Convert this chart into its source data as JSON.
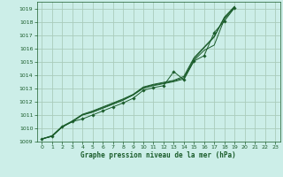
{
  "title": "Graphe pression niveau de la mer (hPa)",
  "background_color": "#cceee8",
  "grid_color": "#aaccbb",
  "line_color": "#1a5c2a",
  "xlim": [
    -0.5,
    23.5
  ],
  "ylim": [
    1009.0,
    1019.5
  ],
  "xticks": [
    0,
    1,
    2,
    3,
    4,
    5,
    6,
    7,
    8,
    9,
    10,
    11,
    12,
    13,
    14,
    15,
    16,
    17,
    18,
    19,
    20,
    21,
    22,
    23
  ],
  "yticks": [
    1009,
    1010,
    1011,
    1012,
    1013,
    1014,
    1015,
    1016,
    1017,
    1018,
    1019
  ],
  "line_x": [
    0,
    1,
    2,
    3,
    4,
    5,
    6,
    7,
    8,
    9,
    10,
    11,
    12,
    13,
    14,
    15,
    16,
    17,
    18,
    19,
    20,
    21,
    22,
    23
  ],
  "line1_y": [
    1009.2,
    1009.4,
    1010.1,
    1010.5,
    1010.7,
    1011.0,
    1011.3,
    1011.6,
    1011.9,
    1012.25,
    1012.85,
    1013.05,
    1013.2,
    1014.25,
    1013.65,
    1015.05,
    1015.45,
    1017.2,
    1018.05,
    1019.05,
    null,
    null,
    null,
    null
  ],
  "line2_y": [
    1009.2,
    1009.4,
    1010.1,
    1010.5,
    1011.0,
    1011.2,
    1011.5,
    1011.8,
    1012.1,
    1012.5,
    1013.0,
    1013.2,
    1013.35,
    1013.5,
    1013.7,
    1015.1,
    1015.85,
    1016.25,
    1018.2,
    1019.08,
    null,
    null,
    null,
    null
  ],
  "line3_y": [
    1009.2,
    1009.4,
    1010.1,
    1010.5,
    1011.0,
    1011.25,
    1011.55,
    1011.85,
    1012.15,
    1012.5,
    1013.05,
    1013.25,
    1013.4,
    1013.55,
    1013.8,
    1015.2,
    1016.05,
    1016.85,
    1018.3,
    1019.12,
    null,
    null,
    null,
    null
  ],
  "line4_y": [
    1009.2,
    1009.45,
    1010.15,
    1010.55,
    1011.05,
    1011.3,
    1011.6,
    1011.9,
    1012.2,
    1012.55,
    1013.1,
    1013.3,
    1013.45,
    1013.6,
    1013.9,
    1015.3,
    1016.1,
    1016.9,
    1018.35,
    1019.15,
    null,
    null,
    null,
    null
  ],
  "marker_line_y": [
    1009.2,
    1009.4,
    1010.1,
    1010.5,
    1010.7,
    1011.0,
    1011.3,
    1011.6,
    1011.9,
    1012.25,
    1012.85,
    1013.05,
    1013.2,
    1014.25,
    1013.65,
    1015.05,
    1015.45,
    1017.2,
    1018.05,
    1019.05,
    null,
    null,
    null,
    null
  ]
}
